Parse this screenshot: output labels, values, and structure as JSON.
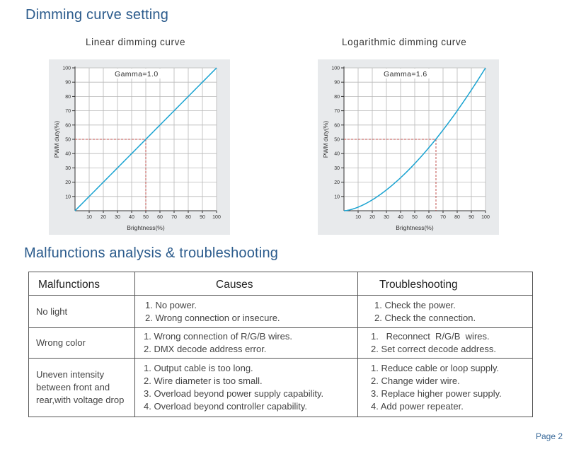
{
  "titles": {
    "dimming": "Dimming curve setting",
    "malfunctions": "Malfunctions analysis & troubleshooting"
  },
  "chart_data": [
    {
      "type": "line",
      "title": "Linear dimming curve",
      "annotation": "Gamma=1.0",
      "gamma": 1.0,
      "xlabel": "Brightness(%)",
      "ylabel": "PWM duty(%)",
      "xlim": [
        0,
        100
      ],
      "ylim": [
        0,
        100
      ],
      "xticks": [
        10,
        20,
        30,
        40,
        50,
        60,
        70,
        80,
        90,
        100
      ],
      "yticks": [
        10,
        20,
        30,
        40,
        50,
        60,
        70,
        80,
        90,
        100
      ],
      "grid": true,
      "x": [
        0,
        10,
        20,
        30,
        40,
        50,
        60,
        70,
        80,
        90,
        100
      ],
      "y": [
        0,
        10,
        20,
        30,
        40,
        50,
        60,
        70,
        80,
        90,
        100
      ],
      "marker": {
        "x": 50,
        "y": 50
      }
    },
    {
      "type": "line",
      "title": "Logarithmic dimming curve",
      "annotation": "Gamma=1.6",
      "gamma": 1.6,
      "xlabel": "Brightness(%)",
      "ylabel": "PWM duty(%)",
      "xlim": [
        0,
        100
      ],
      "ylim": [
        0,
        100
      ],
      "xticks": [
        10,
        20,
        30,
        40,
        50,
        60,
        70,
        80,
        90,
        100
      ],
      "yticks": [
        10,
        20,
        30,
        40,
        50,
        60,
        70,
        80,
        90,
        100
      ],
      "grid": true,
      "x": [
        0,
        10,
        20,
        30,
        40,
        50,
        60,
        70,
        80,
        90,
        100
      ],
      "y": [
        0,
        2.5,
        7.6,
        14.5,
        23.0,
        33.0,
        44.2,
        56.5,
        70.0,
        84.5,
        100
      ],
      "marker": {
        "x": 65,
        "y": 50
      }
    }
  ],
  "table": {
    "headers": {
      "malfunctions": "Malfunctions",
      "causes": "Causes",
      "troubleshooting": "Troubleshooting"
    },
    "rows": [
      {
        "malfunction": [
          "No light"
        ],
        "causes": [
          "1. No power.",
          "2. Wrong connection or insecure."
        ],
        "fixes": [
          "1. Check the power.",
          "2. Check the connection."
        ]
      },
      {
        "malfunction": [
          "Wrong color"
        ],
        "causes": [
          "1. Wrong connection of R/G/B wires.",
          "2. DMX decode address error."
        ],
        "fixes": [
          "1.   Reconnect  R/G/B  wires.",
          "2. Set correct decode address."
        ]
      },
      {
        "malfunction": [
          "Uneven intensity",
          "between front and",
          "rear,with voltage drop"
        ],
        "causes": [
          "1. Output cable is too long.",
          "2. Wire diameter is too small.",
          "3. Overload beyond power supply capability.",
          "4. Overload beyond controller capability."
        ],
        "fixes": [
          "1. Reduce cable or loop supply.",
          "2. Change wider wire.",
          "3. Replace higher power supply.",
          "4. Add power repeater."
        ]
      }
    ]
  },
  "footer": {
    "page": "Page 2"
  },
  "colors": {
    "heading": "#2b5b8c",
    "curve": "#1aa3d1",
    "guide": "#c0504d",
    "chart_bg": "#e8eaec"
  }
}
